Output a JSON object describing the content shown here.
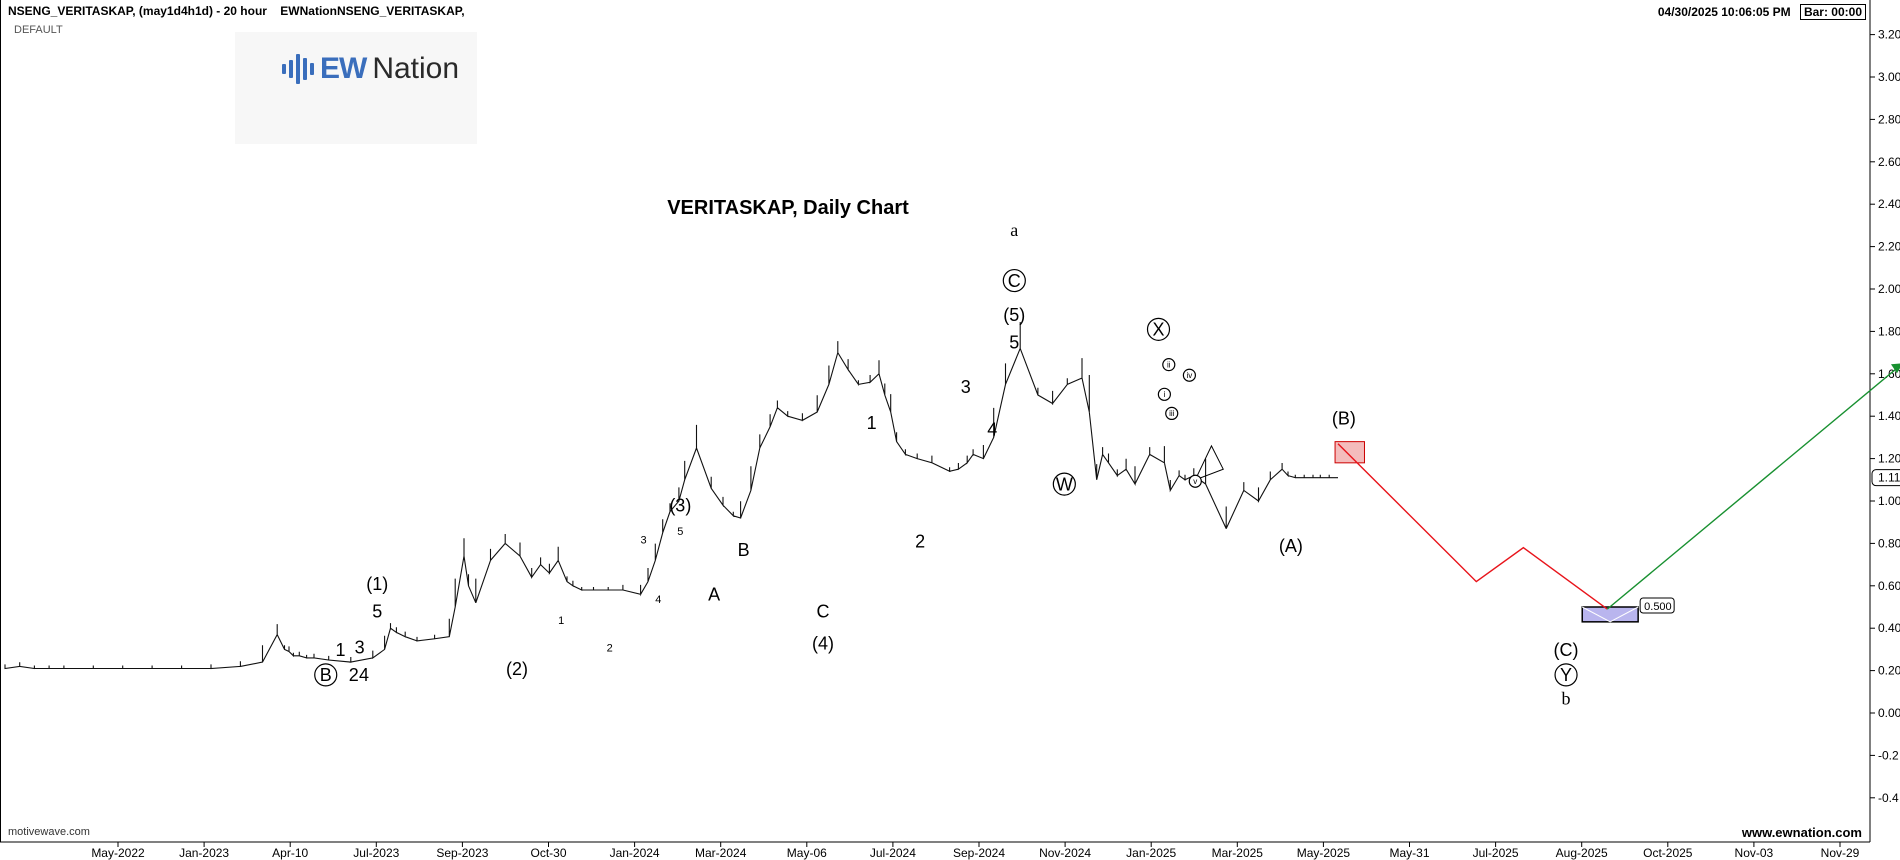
{
  "header": {
    "symbol_line": "NSENG_VERITASKAP, (may1d4h1d) - 20 hour",
    "provider": "EWNationNSENG_VERITASKAP,",
    "subtitle": "DEFAULT",
    "datetime": "04/30/2025 10:06:05 PM",
    "bar_timer": "Bar: 00:00"
  },
  "logo": {
    "mark": "EW",
    "word": "Nation"
  },
  "watermark_left": "motivewave.com",
  "watermark_right": "www.ewnation.com",
  "colors": {
    "projection_down": "#e8141b",
    "projection_up": "#189030",
    "target_box": "#b9b5ee",
    "b_box": "#f4bcbc",
    "logo": "#3a6ebc"
  },
  "chart_data": {
    "type": "line",
    "title": "VERITASKAP, Daily Chart",
    "y_axis": {
      "ticks": [
        -0.4,
        -0.2,
        0.0,
        0.2,
        0.4,
        0.6,
        0.8,
        1.0,
        1.2,
        1.4,
        1.6,
        1.8,
        2.0,
        2.2,
        2.4,
        2.6,
        2.8,
        3.0,
        3.2
      ],
      "tick_labels": [
        "-0.4",
        "-0.2",
        "0.00",
        "0.20",
        "0.40",
        "0.60",
        "0.80",
        "1.00",
        "1.20",
        "1.40",
        "1.60",
        "1.80",
        "2.00",
        "2.20",
        "2.40",
        "2.60",
        "2.80",
        "3.00",
        "3.20"
      ],
      "side": "right",
      "last_price_label": "1.11",
      "last_price": 1.11
    },
    "x_axis": {
      "tick_labels": [
        "May-2022",
        "Jan-2023",
        "Apr-10",
        "Jul-2023",
        "Sep-2023",
        "Oct-30",
        "Jan-2024",
        "Mar-2024",
        "May-06",
        "Jul-2024",
        "Sep-2024",
        "Nov-2024",
        "Jan-2025",
        "Mar-2025",
        "May-2025",
        "May-31",
        "Jul-2025",
        "Aug-2025",
        "Oct-2025",
        "Nov-03",
        "Nov-29"
      ]
    },
    "grid": false,
    "series": [
      {
        "x": [
          0,
          10,
          20,
          30,
          40,
          60,
          80,
          100,
          120,
          140,
          160,
          175,
          185,
          190,
          193,
          196,
          200,
          205,
          210,
          220,
          235,
          250,
          258,
          262,
          266,
          272,
          280,
          292,
          302,
          306,
          312,
          315,
          320,
          330,
          340,
          350,
          358,
          364,
          370,
          376,
          382,
          386,
          392,
          400,
          410,
          420,
          432,
          437,
          442,
          447,
          452,
          458,
          462,
          470,
          480,
          488,
          495,
          500,
          507,
          513,
          520,
          525,
          532,
          542,
          552,
          560,
          566,
          573,
          580,
          588,
          594,
          598,
          602,
          606,
          612,
          620,
          630,
          642,
          648,
          654,
          658,
          665,
          672,
          680,
          690,
          702,
          712,
          722,
          732,
          737,
          742,
          746,
          750,
          756,
          762,
          768,
          778,
          788,
          792,
          798,
          802,
          808,
          816,
          830,
          842,
          852,
          860,
          868,
          872,
          877,
          883,
          889,
          894,
          900,
          906
        ],
        "y": [
          0.21,
          0.22,
          0.21,
          0.21,
          0.21,
          0.21,
          0.21,
          0.21,
          0.21,
          0.21,
          0.22,
          0.24,
          0.37,
          0.3,
          0.29,
          0.27,
          0.27,
          0.26,
          0.26,
          0.25,
          0.24,
          0.26,
          0.3,
          0.4,
          0.38,
          0.36,
          0.34,
          0.35,
          0.36,
          0.5,
          0.74,
          0.6,
          0.52,
          0.72,
          0.8,
          0.74,
          0.64,
          0.7,
          0.66,
          0.72,
          0.62,
          0.6,
          0.58,
          0.58,
          0.58,
          0.58,
          0.56,
          0.62,
          0.72,
          0.85,
          0.95,
          1.0,
          1.1,
          1.25,
          1.06,
          0.98,
          0.93,
          0.92,
          1.05,
          1.25,
          1.35,
          1.44,
          1.4,
          1.38,
          1.42,
          1.55,
          1.7,
          1.62,
          1.55,
          1.56,
          1.6,
          1.5,
          1.42,
          1.28,
          1.22,
          1.2,
          1.18,
          1.14,
          1.15,
          1.18,
          1.22,
          1.2,
          1.3,
          1.55,
          1.72,
          1.5,
          1.46,
          1.55,
          1.58,
          1.42,
          1.1,
          1.22,
          1.18,
          1.12,
          1.15,
          1.08,
          1.22,
          1.18,
          1.05,
          1.12,
          1.1,
          1.12,
          1.08,
          0.87,
          1.05,
          1.0,
          1.1,
          1.15,
          1.12,
          1.11,
          1.11,
          1.11,
          1.11,
          1.11,
          1.11
        ]
      }
    ],
    "projection": {
      "down_path": [
        {
          "x": 906,
          "y": 1.27
        },
        {
          "x": 1000,
          "y": 0.62
        },
        {
          "x": 1032,
          "y": 0.78
        },
        {
          "x": 1089,
          "y": 0.49
        }
      ],
      "up_path": [
        {
          "x": 1089,
          "y": 0.49
        },
        {
          "x": 1290,
          "y": 1.65
        }
      ],
      "b_zone": {
        "x0": 904,
        "x1": 924,
        "y0": 1.18,
        "y1": 1.28
      },
      "target_zone": {
        "x0": 1072,
        "x1": 1110,
        "y0": 0.43,
        "y1": 0.5,
        "label": "0.500"
      }
    },
    "annotations": [
      {
        "text": "B",
        "x": 218,
        "y": 0.15,
        "style": "circle"
      },
      {
        "text": "1",
        "x": 228,
        "y": 0.27
      },
      {
        "text": "2",
        "x": 237,
        "y": 0.15
      },
      {
        "text": "3",
        "x": 241,
        "y": 0.28
      },
      {
        "text": "4",
        "x": 244,
        "y": 0.15
      },
      {
        "text": "(1)",
        "x": 253,
        "y": 0.58
      },
      {
        "text": "5",
        "x": 253,
        "y": 0.45
      },
      {
        "text": "(2)",
        "x": 348,
        "y": 0.18
      },
      {
        "text": "1",
        "x": 378,
        "y": 0.42,
        "size": "small"
      },
      {
        "text": "2",
        "x": 411,
        "y": 0.29,
        "size": "small"
      },
      {
        "text": "3",
        "x": 434,
        "y": 0.8,
        "size": "small"
      },
      {
        "text": "4",
        "x": 444,
        "y": 0.52,
        "size": "small"
      },
      {
        "text": "(3)",
        "x": 459,
        "y": 0.95
      },
      {
        "text": "5",
        "x": 459,
        "y": 0.84,
        "size": "small"
      },
      {
        "text": "A",
        "x": 482,
        "y": 0.53
      },
      {
        "text": "B",
        "x": 502,
        "y": 0.74
      },
      {
        "text": "C",
        "x": 556,
        "y": 0.45
      },
      {
        "text": "(4)",
        "x": 556,
        "y": 0.3
      },
      {
        "text": "1",
        "x": 589,
        "y": 1.34
      },
      {
        "text": "2",
        "x": 622,
        "y": 0.78
      },
      {
        "text": "3",
        "x": 653,
        "y": 1.51
      },
      {
        "text": "4",
        "x": 671,
        "y": 1.31
      },
      {
        "text": "a",
        "x": 686,
        "y": 2.25,
        "font": "serif"
      },
      {
        "text": "C",
        "x": 686,
        "y": 2.01,
        "style": "circle"
      },
      {
        "text": "(5)",
        "x": 686,
        "y": 1.85
      },
      {
        "text": "5",
        "x": 686,
        "y": 1.72
      },
      {
        "text": "W",
        "x": 720,
        "y": 1.05,
        "style": "circle"
      },
      {
        "text": "X",
        "x": 784,
        "y": 1.78,
        "style": "circle"
      },
      {
        "text": "ii",
        "x": 791,
        "y": 1.63,
        "style": "circle",
        "size": "tiny"
      },
      {
        "text": "i",
        "x": 788,
        "y": 1.49,
        "style": "circle",
        "size": "tiny"
      },
      {
        "text": "iii",
        "x": 793,
        "y": 1.4,
        "style": "circle",
        "size": "tiny"
      },
      {
        "text": "iv",
        "x": 805,
        "y": 1.58,
        "style": "circle",
        "size": "tiny"
      },
      {
        "text": "v",
        "x": 809,
        "y": 1.08,
        "style": "circle",
        "size": "tiny"
      },
      {
        "text": "(A)",
        "x": 874,
        "y": 0.76
      },
      {
        "text": "(B)",
        "x": 910,
        "y": 1.36
      },
      {
        "text": "(C)",
        "x": 1061,
        "y": 0.27
      },
      {
        "text": "Y",
        "x": 1061,
        "y": 0.15,
        "style": "circle"
      },
      {
        "text": "b",
        "x": 1061,
        "y": 0.04,
        "font": "serif"
      }
    ]
  }
}
